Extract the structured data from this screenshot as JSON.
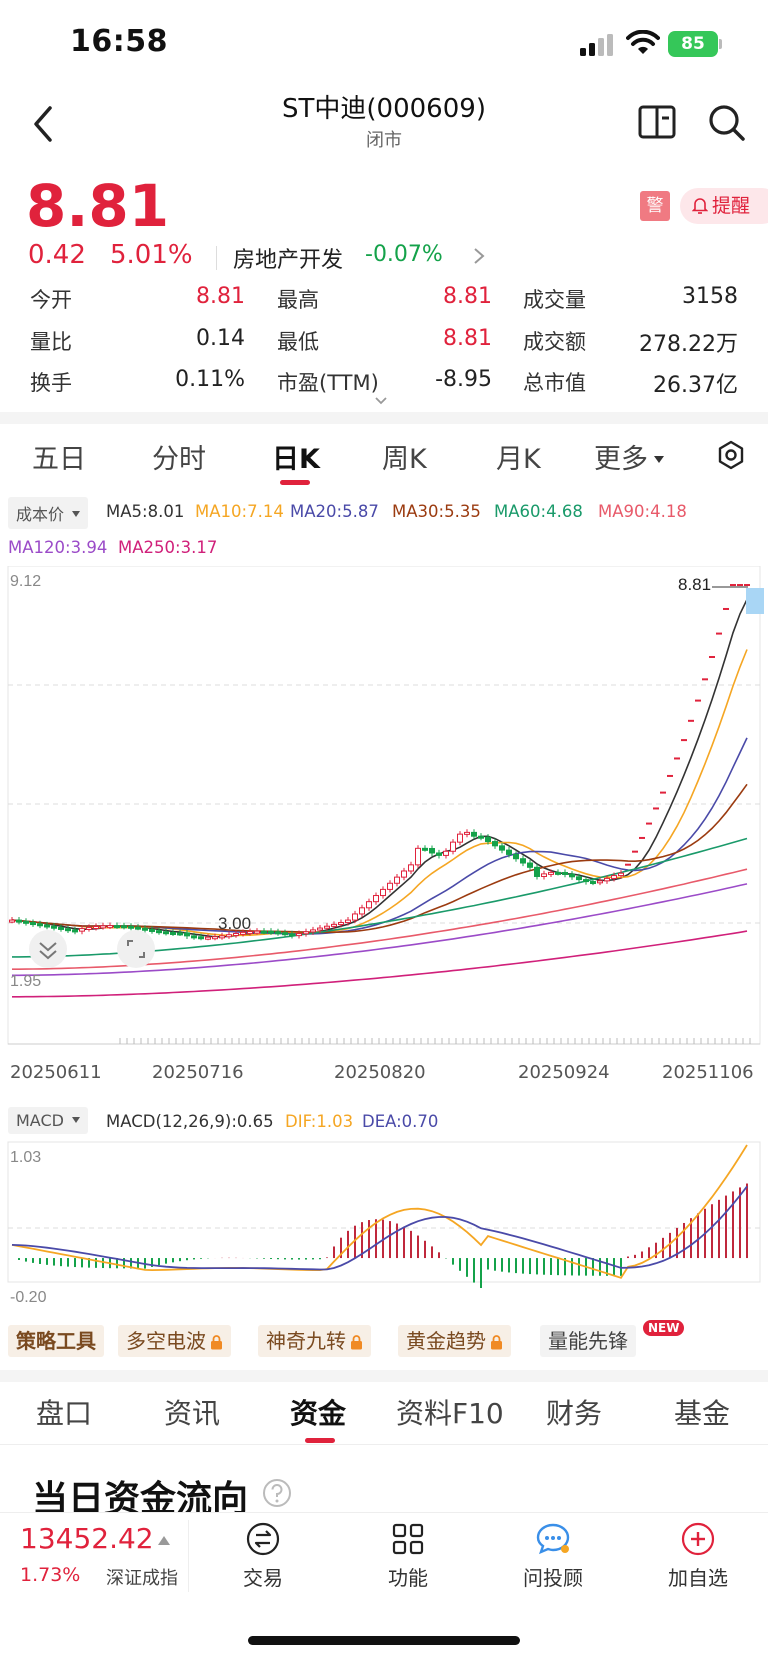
{
  "status": {
    "time": "16:58",
    "battery": "85"
  },
  "header": {
    "title": "ST中迪(000609)",
    "subtitle": "闭市"
  },
  "quote": {
    "price": "8.81",
    "change": "0.42",
    "change_pct": "5.01%",
    "sector": "房地产开发",
    "sector_change": "-0.07%",
    "warn_badge": "警",
    "remind_label": "提醒"
  },
  "stats": [
    {
      "label": "今开",
      "value": "8.81",
      "color": "#e0223c"
    },
    {
      "label": "最高",
      "value": "8.81",
      "color": "#e0223c"
    },
    {
      "label": "成交量",
      "value": "3158",
      "color": "#222222"
    },
    {
      "label": "量比",
      "value": "0.14",
      "color": "#222222"
    },
    {
      "label": "最低",
      "value": "8.81",
      "color": "#e0223c"
    },
    {
      "label": "成交额",
      "value": "278.22万",
      "color": "#222222"
    },
    {
      "label": "换手",
      "value": "0.11%",
      "color": "#222222"
    },
    {
      "label": "市盈(TTM)",
      "value": "-8.95",
      "color": "#222222"
    },
    {
      "label": "总市值",
      "value": "26.37亿",
      "color": "#222222"
    }
  ],
  "period_tabs": [
    "五日",
    "分时",
    "日K",
    "周K",
    "月K",
    "更多"
  ],
  "active_period": "日K",
  "ma_legend": {
    "chip": "成本价",
    "items": [
      {
        "label": "MA5:8.01",
        "color": "#333333"
      },
      {
        "label": "MA10:7.14",
        "color": "#f5a623"
      },
      {
        "label": "MA20:5.87",
        "color": "#4a4aa8"
      },
      {
        "label": "MA30:5.35",
        "color": "#9b3b10"
      },
      {
        "label": "MA60:4.68",
        "color": "#1a9a6a"
      },
      {
        "label": "MA90:4.18",
        "color": "#e85a6a"
      },
      {
        "label": "MA120:3.94",
        "color": "#9b4bc8"
      },
      {
        "label": "MA250:3.17",
        "color": "#d0207a"
      }
    ]
  },
  "kchart": {
    "y_max_label": "9.12",
    "y_min_label": "1.95",
    "last_price_label": "8.81",
    "low_marker_label": "3.00",
    "dates": [
      "20250611",
      "20250716",
      "20250820",
      "20250924",
      "20251106"
    ]
  },
  "macd": {
    "chip": "MACD",
    "params": "MACD(12,26,9):0.65",
    "dif": "DIF:1.03",
    "dea": "DEA:0.70",
    "colors": {
      "dif": "#f5a623",
      "dea": "#4a4aa8"
    },
    "y_max_label": "1.03",
    "y_min_label": "-0.20"
  },
  "tools": {
    "title": "策略工具",
    "items": [
      "多空电波",
      "神奇九转",
      "黄金趋势"
    ],
    "plain": "量能先锋",
    "new_badge": "NEW"
  },
  "section_tabs": [
    "盘口",
    "资讯",
    "资金",
    "资料F10",
    "财务",
    "基金"
  ],
  "active_section": "资金",
  "section_title": "当日资金流向",
  "bottom": {
    "index_value": "13452.42",
    "index_pct": "1.73%",
    "index_name": "深证成指",
    "nav": [
      "交易",
      "功能",
      "问投顾",
      "加自选"
    ]
  }
}
